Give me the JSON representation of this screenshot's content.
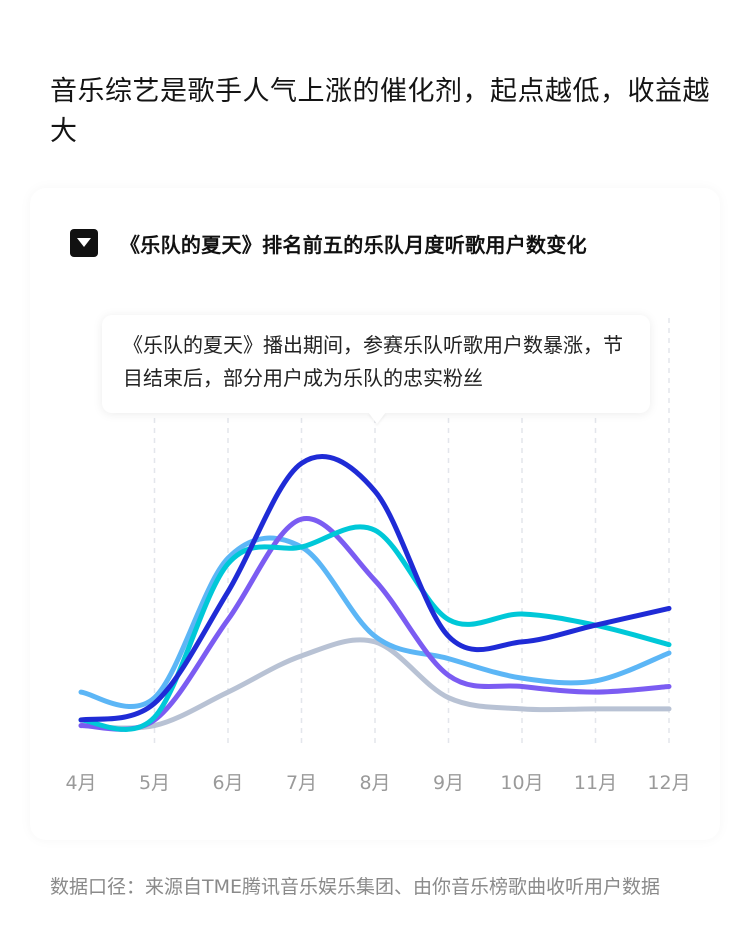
{
  "headline": "音乐综艺是歌手人气上涨的催化剂，起点越低，收益越大",
  "chart_data": {
    "type": "line",
    "title": "《乐队的夏天》排名前五的乐队月度听歌用户数变化",
    "xlabel": "",
    "ylabel": "",
    "categories": [
      "4月",
      "5月",
      "6月",
      "7月",
      "8月",
      "9月",
      "10月",
      "11月",
      "12月"
    ],
    "y_ticks_shown": false,
    "ylim": [
      0,
      100
    ],
    "grid": "vertical dashed",
    "legend": "none",
    "annotation": "《乐队的夏天》播出期间，参赛乐队听歌用户数暴涨，节目结束后，部分用户成为乐队的忠实粉丝",
    "series": [
      {
        "color": "#1f2bd6",
        "values": [
          0,
          6,
          46,
          92,
          82,
          30,
          28,
          34,
          40
        ]
      },
      {
        "color": "#7b5cf2",
        "values": [
          -2,
          0,
          36,
          72,
          50,
          16,
          12,
          10,
          12
        ]
      },
      {
        "color": "#00c8d8",
        "values": [
          0,
          1,
          56,
          62,
          68,
          36,
          38,
          34,
          27
        ]
      },
      {
        "color": "#5cb6f6",
        "values": [
          10,
          8,
          58,
          62,
          30,
          22,
          15,
          14,
          24
        ]
      },
      {
        "color": "#b8c2d4",
        "values": [
          -2,
          -2,
          10,
          23,
          28,
          8,
          4,
          4,
          4
        ]
      }
    ]
  },
  "footnote": "数据口径：来源自TME腾讯音乐娱乐集团、由你音乐榜歌曲收听用户数据"
}
